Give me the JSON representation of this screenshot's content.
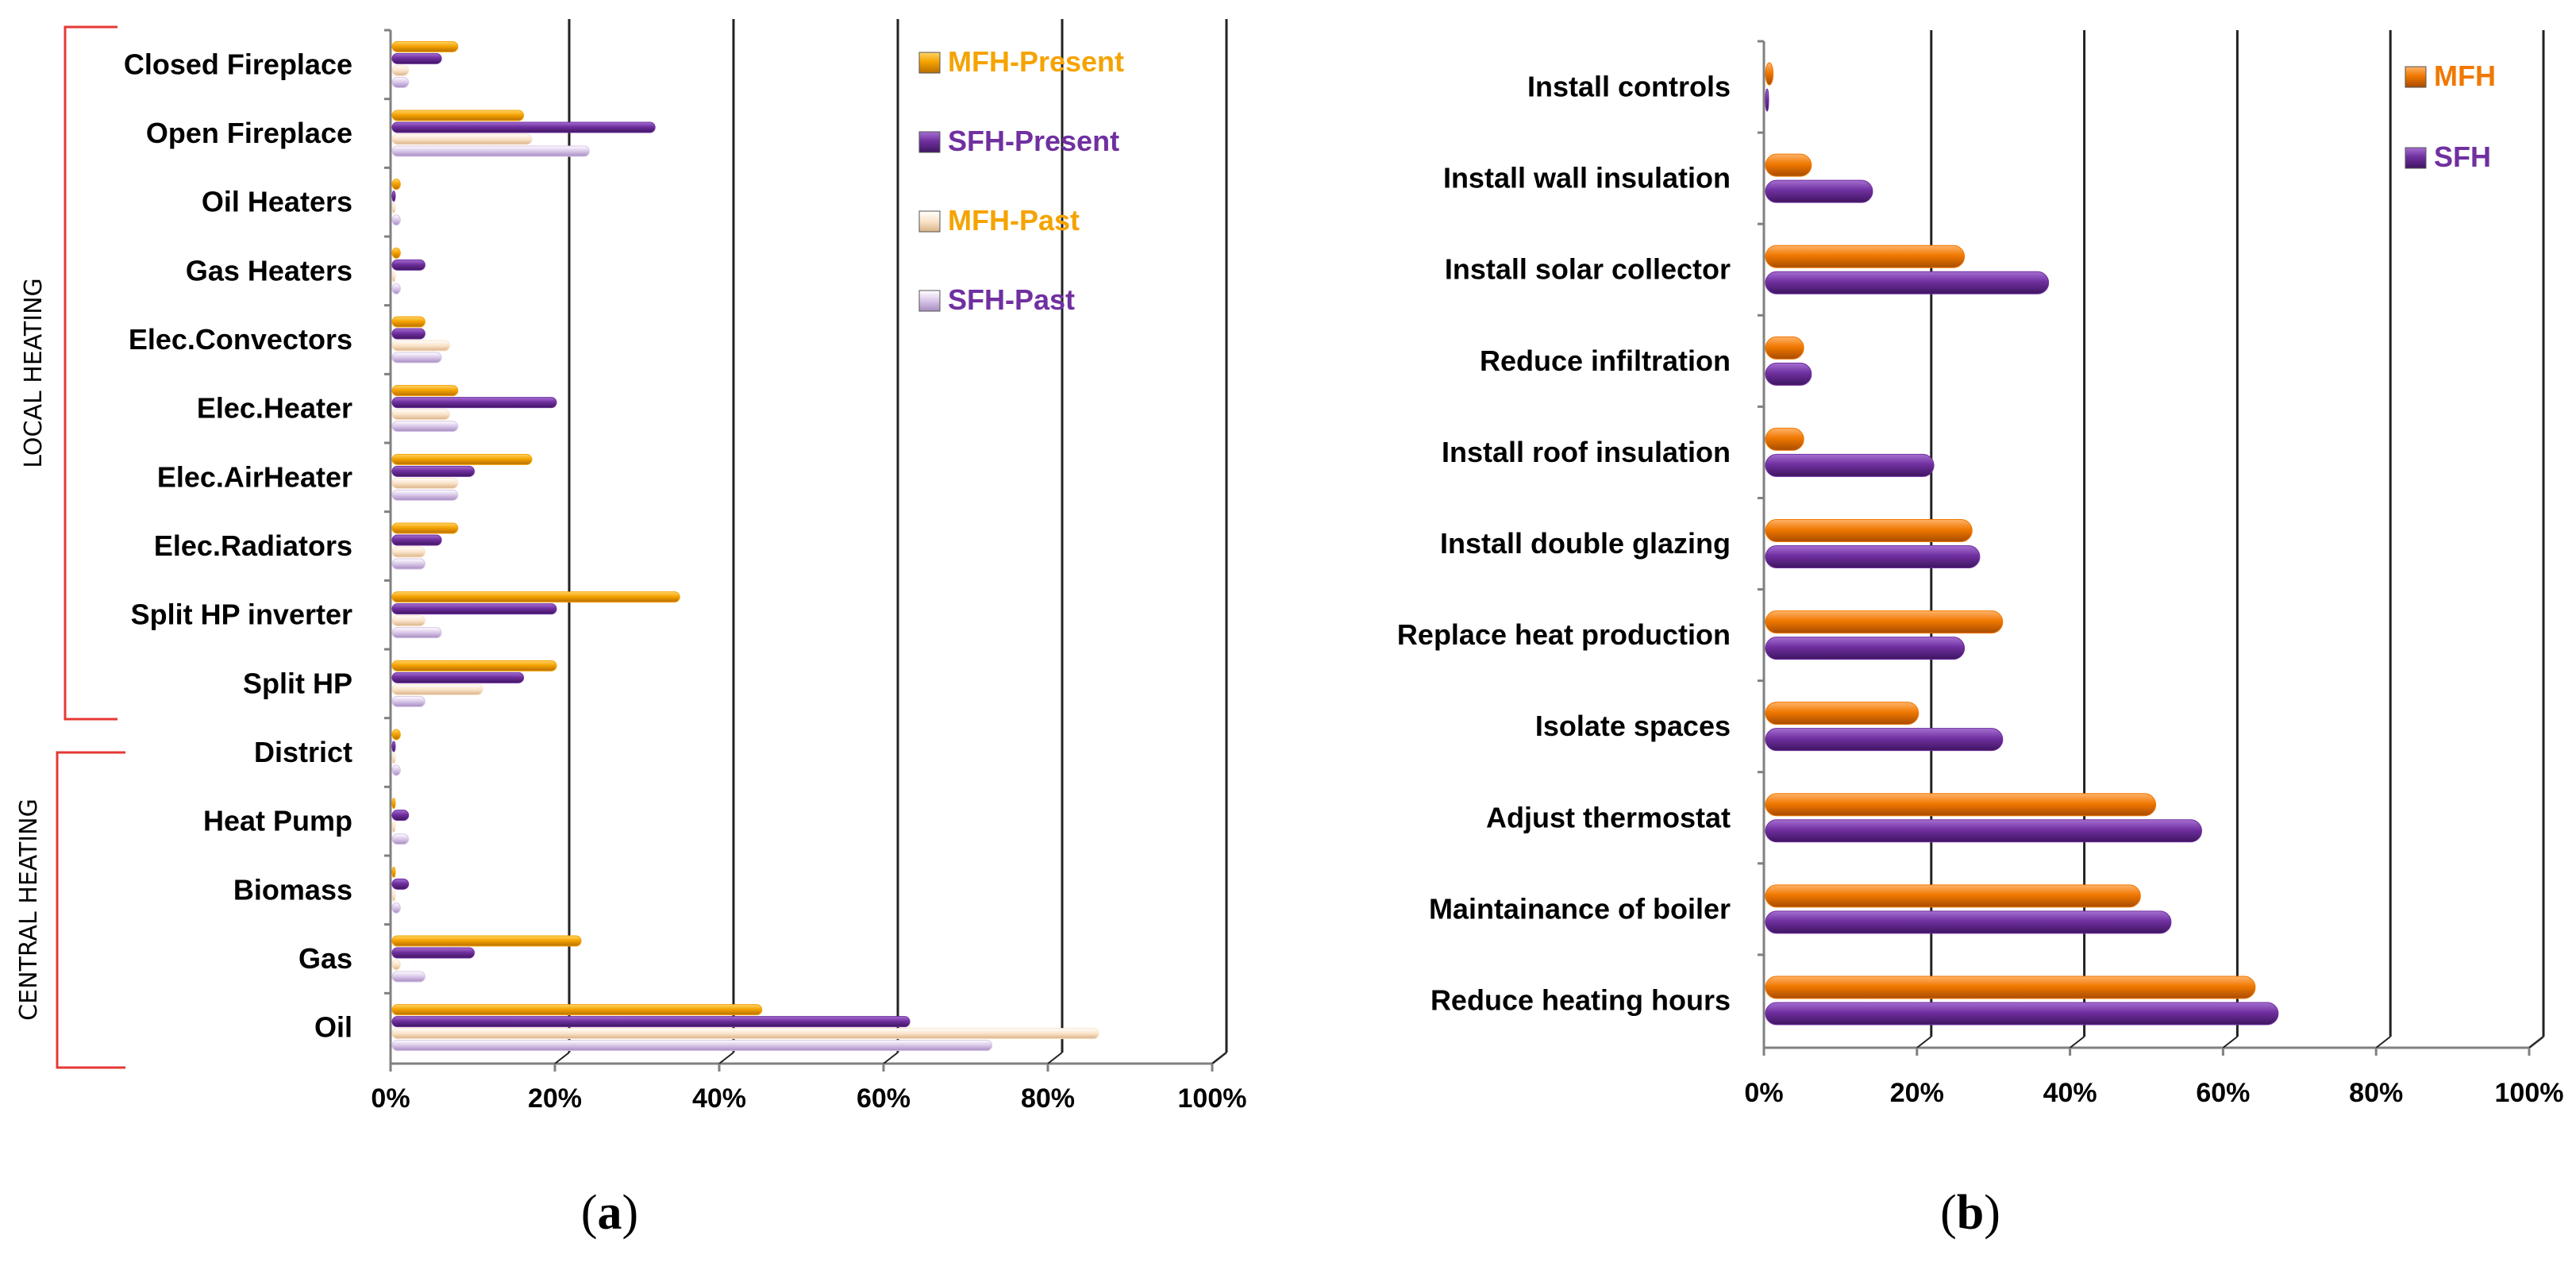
{
  "chart_data": [
    {
      "panel": "a",
      "type": "bar",
      "orientation": "horizontal",
      "categories": [
        "Closed Fireplace",
        "Open Fireplace",
        "Oil Heaters",
        "Gas Heaters",
        "Elec.Convectors",
        "Elec.Heater",
        "Elec.AirHeater",
        "Elec.Radiators",
        "Split HP inverter",
        "Split HP",
        "District",
        "Heat Pump",
        "Biomass",
        "Gas",
        "Oil"
      ],
      "series": [
        {
          "name": "MFH-Present",
          "color": "#F5A300",
          "values": [
            8,
            16,
            1,
            1,
            4,
            8,
            17,
            8,
            35,
            20,
            1,
            0,
            0,
            23,
            45
          ]
        },
        {
          "name": "SFH-Present",
          "color": "#7030A0",
          "values": [
            6,
            32,
            0,
            4,
            4,
            20,
            10,
            6,
            20,
            16,
            0,
            2,
            2,
            10,
            63
          ]
        },
        {
          "name": "MFH-Past",
          "color": "#FAE3C8",
          "values": [
            2,
            17,
            0,
            0,
            7,
            7,
            8,
            4,
            4,
            11,
            0,
            0,
            0,
            1,
            86
          ]
        },
        {
          "name": "SFH-Past",
          "color": "#D8C6E8",
          "values": [
            2,
            24,
            1,
            1,
            6,
            8,
            8,
            4,
            6,
            4,
            1,
            2,
            1,
            4,
            73
          ]
        }
      ],
      "xlim": [
        0,
        100
      ],
      "xticks": [
        "0%",
        "20%",
        "40%",
        "60%",
        "80%",
        "100%"
      ],
      "groups": [
        {
          "label": "LOCAL HEATING"
        },
        {
          "label": "CENTRAL HEATING"
        }
      ],
      "legend_position": "top-right",
      "caption_open": "(",
      "caption_letter": "a",
      "caption_close": ")"
    },
    {
      "panel": "b",
      "type": "bar",
      "orientation": "horizontal",
      "categories": [
        "Install controls",
        "Install wall insulation",
        "Install solar collector",
        "Reduce infiltration",
        "Install roof insulation",
        "Install double glazing",
        "Replace heat production",
        "Isolate spaces",
        "Adjust thermostat",
        "Maintainance of boiler",
        "Reduce heating hours"
      ],
      "series": [
        {
          "name": "MFH",
          "color": "#F07800",
          "values": [
            1,
            6,
            26,
            5,
            5,
            27,
            31,
            20,
            51,
            49,
            64
          ]
        },
        {
          "name": "SFH",
          "color": "#7030A0",
          "values": [
            0,
            14,
            37,
            6,
            22,
            28,
            26,
            31,
            57,
            53,
            67
          ]
        }
      ],
      "xlim": [
        0,
        100
      ],
      "xticks": [
        "0%",
        "20%",
        "40%",
        "60%",
        "80%",
        "100%"
      ],
      "legend_position": "top-right",
      "caption_open": "(",
      "caption_letter": "b",
      "caption_close": ")"
    }
  ]
}
